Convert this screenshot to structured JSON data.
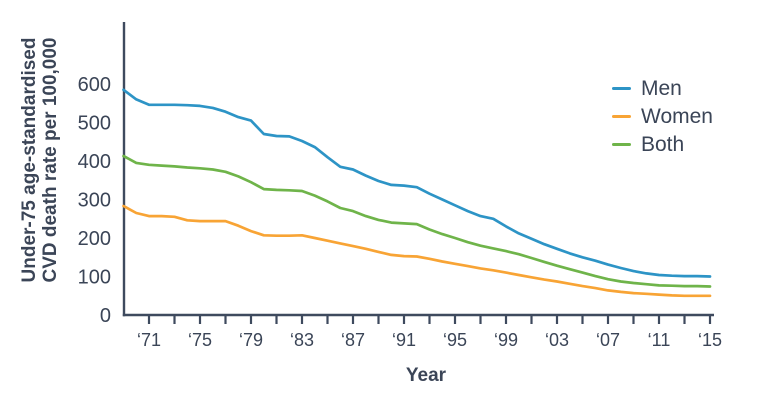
{
  "chart_data": {
    "type": "line",
    "title": "",
    "xlabel": "Year",
    "ylabel_line1": "Under-75 age-standardised",
    "ylabel_line2": "CVD death rate per 100,000",
    "ylim": [
      0,
      650
    ],
    "grid": false,
    "legend_position": "upper right",
    "axis_color": "#3e4a5e",
    "text_color": "#3b4557",
    "y_ticks": [
      0,
      100,
      200,
      300,
      400,
      500,
      600
    ],
    "x_ticks": [
      1971,
      1973,
      1975,
      1977,
      1979,
      1981,
      1983,
      1985,
      1987,
      1989,
      1991,
      1993,
      1995,
      1997,
      1999,
      2001,
      2003,
      2005,
      2007,
      2009,
      2011,
      2013,
      2015
    ],
    "x_tick_labels": [
      {
        "year": 1971,
        "label": "‘71"
      },
      {
        "year": 1975,
        "label": "‘75"
      },
      {
        "year": 1979,
        "label": "‘79"
      },
      {
        "year": 1983,
        "label": "‘83"
      },
      {
        "year": 1987,
        "label": "‘87"
      },
      {
        "year": 1991,
        "label": "‘91"
      },
      {
        "year": 1995,
        "label": "‘95"
      },
      {
        "year": 1999,
        "label": "‘99"
      },
      {
        "year": 2003,
        "label": "‘03"
      },
      {
        "year": 2007,
        "label": "‘07"
      },
      {
        "year": 2011,
        "label": "‘11"
      },
      {
        "year": 2015,
        "label": "‘15"
      }
    ],
    "years": [
      1969,
      1970,
      1971,
      1972,
      1973,
      1974,
      1975,
      1976,
      1977,
      1978,
      1979,
      1980,
      1981,
      1982,
      1983,
      1984,
      1985,
      1986,
      1987,
      1988,
      1989,
      1990,
      1991,
      1992,
      1993,
      1994,
      1995,
      1996,
      1997,
      1998,
      1999,
      2000,
      2001,
      2002,
      2003,
      2004,
      2005,
      2006,
      2007,
      2008,
      2009,
      2010,
      2011,
      2012,
      2013,
      2014,
      2015
    ],
    "series": [
      {
        "name": "Men",
        "color": "#2d94c6",
        "values": [
          585,
          560,
          546,
          546,
          546,
          545,
          543,
          538,
          528,
          514,
          505,
          470,
          465,
          464,
          452,
          436,
          410,
          385,
          378,
          362,
          348,
          338,
          336,
          332,
          315,
          300,
          285,
          270,
          257,
          250,
          230,
          212,
          198,
          184,
          172,
          160,
          150,
          141,
          131,
          122,
          114,
          108,
          104,
          102,
          101,
          101,
          100
        ]
      },
      {
        "name": "Women",
        "color": "#f8a435",
        "values": [
          283,
          265,
          257,
          257,
          255,
          246,
          244,
          244,
          244,
          232,
          218,
          207,
          206,
          206,
          207,
          200,
          193,
          186,
          179,
          172,
          164,
          156,
          153,
          152,
          146,
          139,
          133,
          127,
          121,
          116,
          110,
          104,
          98,
          92,
          87,
          81,
          75,
          70,
          64,
          60,
          57,
          55,
          53,
          51,
          50,
          50,
          50
        ]
      },
      {
        "name": "Both",
        "color": "#6fb44a",
        "values": [
          413,
          395,
          390,
          388,
          386,
          383,
          381,
          378,
          372,
          360,
          345,
          327,
          325,
          324,
          322,
          310,
          295,
          278,
          270,
          257,
          247,
          240,
          238,
          236,
          222,
          210,
          200,
          189,
          180,
          173,
          166,
          158,
          148,
          138,
          128,
          119,
          110,
          101,
          93,
          87,
          83,
          80,
          77,
          76,
          75,
          75,
          74
        ]
      }
    ]
  }
}
